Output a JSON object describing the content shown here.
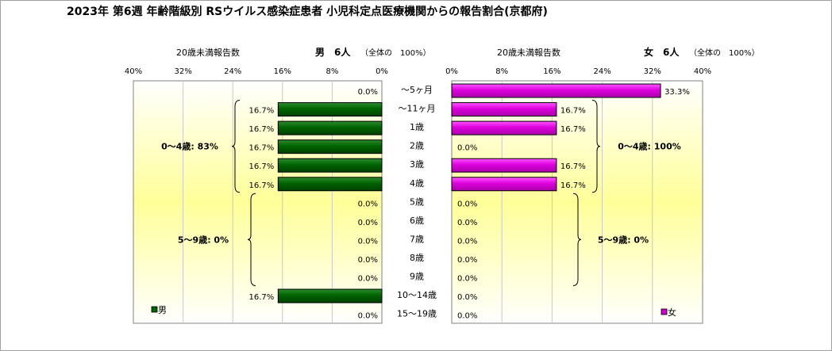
{
  "chart_data": {
    "type": "bar",
    "title": "2023年 第6週 年齢階級別 RSウイルス感染症患者 小児科定点医療機関からの報告割合(京都府)",
    "categories": [
      "～5ヶ月",
      "～11ヶ月",
      "1歳",
      "2歳",
      "3歳",
      "4歳",
      "5歳",
      "6歳",
      "7歳",
      "8歳",
      "9歳",
      "10～14歳",
      "15～19歳"
    ],
    "axis_ticks_left": [
      "40%",
      "32%",
      "24%",
      "16%",
      "8%",
      "0%"
    ],
    "axis_ticks_right": [
      "0%",
      "8%",
      "16%",
      "24%",
      "32%",
      "40%"
    ],
    "xlim": [
      0,
      40
    ],
    "grid": true,
    "panels": {
      "male": {
        "subtitle_left": "20歳未満報告数",
        "subtitle_right": "男　6人",
        "subtitle_note": "（全体の　100%）",
        "legend": "男",
        "color": "#006400",
        "values": [
          0.0,
          16.7,
          16.7,
          16.7,
          16.7,
          16.7,
          0.0,
          0.0,
          0.0,
          0.0,
          0.0,
          16.7,
          0.0
        ],
        "value_labels": [
          "0.0%",
          "16.7%",
          "16.7%",
          "16.7%",
          "16.7%",
          "16.7%",
          "0.0%",
          "0.0%",
          "0.0%",
          "0.0%",
          "0.0%",
          "16.7%",
          "0.0%"
        ],
        "group_labels": [
          "0～4歳: 83%",
          "5～9歳: 0%"
        ]
      },
      "female": {
        "subtitle_left": "20歳未満報告数",
        "subtitle_right": "女　6人",
        "subtitle_note": "（全体の　100%）",
        "legend": "女",
        "color": "#cc00cc",
        "values": [
          33.3,
          16.7,
          16.7,
          0.0,
          16.7,
          16.7,
          0.0,
          0.0,
          0.0,
          0.0,
          0.0,
          0.0,
          0.0
        ],
        "value_labels": [
          "33.3%",
          "16.7%",
          "16.7%",
          "0.0%",
          "16.7%",
          "16.7%",
          "0.0%",
          "0.0%",
          "0.0%",
          "0.0%",
          "0.0%",
          "0.0%",
          "0.0%"
        ],
        "group_labels": [
          "0～4歳: 100%",
          "5～9歳: 0%"
        ]
      }
    }
  }
}
